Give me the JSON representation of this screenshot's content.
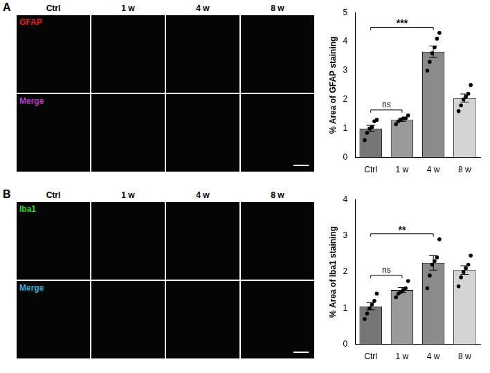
{
  "image_grids": [
    {
      "letter": "A",
      "columns": [
        "Ctrl",
        "1 w",
        "4 w",
        "8 w"
      ],
      "rows": [
        "GFAP",
        "Merge"
      ]
    },
    {
      "letter": "B",
      "columns": [
        "Ctrl",
        "1 w",
        "4 w",
        "8 w"
      ],
      "rows": [
        "Iba1",
        "Merge"
      ]
    }
  ],
  "chart_data": [
    {
      "type": "bar",
      "categories": [
        "Ctrl",
        "1 w",
        "4 w",
        "8 w"
      ],
      "values": [
        1.0,
        1.3,
        3.65,
        2.05
      ],
      "errors": [
        0.11,
        0.05,
        0.2,
        0.14
      ],
      "points": [
        [
          0.6,
          0.85,
          1.0,
          1.05,
          1.25,
          1.3
        ],
        [
          1.15,
          1.25,
          1.3,
          1.35,
          1.35,
          1.45
        ],
        [
          3.0,
          3.3,
          3.6,
          3.8,
          4.1,
          4.3
        ],
        [
          1.6,
          1.8,
          2.0,
          2.1,
          2.2,
          2.5
        ]
      ],
      "colors": [
        "#767676",
        "#9a9a9a",
        "#8a8a8a",
        "#d4d4d4"
      ],
      "ylabel": "% Area of GFAP staining",
      "ylim": [
        0,
        5
      ],
      "yticks": [
        0,
        1,
        2,
        3,
        4,
        5
      ],
      "grid": false,
      "annotations": [
        {
          "from": "Ctrl",
          "to": "1 w",
          "label": "ns"
        },
        {
          "from": "Ctrl",
          "to": "4 w",
          "label": "***"
        }
      ]
    },
    {
      "type": "bar",
      "categories": [
        "Ctrl",
        "1 w",
        "4 w",
        "8 w"
      ],
      "values": [
        1.05,
        1.5,
        2.25,
        2.05
      ],
      "errors": [
        0.1,
        0.07,
        0.2,
        0.12
      ],
      "points": [
        [
          0.7,
          0.85,
          1.0,
          1.1,
          1.2,
          1.4
        ],
        [
          1.3,
          1.4,
          1.45,
          1.5,
          1.55,
          1.75
        ],
        [
          1.55,
          1.9,
          2.2,
          2.3,
          2.4,
          2.9
        ],
        [
          1.6,
          1.85,
          2.0,
          2.1,
          2.2,
          2.45
        ]
      ],
      "colors": [
        "#767676",
        "#9a9a9a",
        "#8a8a8a",
        "#d4d4d4"
      ],
      "ylabel": "% Area of Iba1 staining",
      "ylim": [
        0,
        4
      ],
      "yticks": [
        0,
        1,
        2,
        3,
        4
      ],
      "grid": false,
      "annotations": [
        {
          "from": "Ctrl",
          "to": "1 w",
          "label": "ns"
        },
        {
          "from": "Ctrl",
          "to": "4 w",
          "label": "**"
        }
      ]
    }
  ]
}
